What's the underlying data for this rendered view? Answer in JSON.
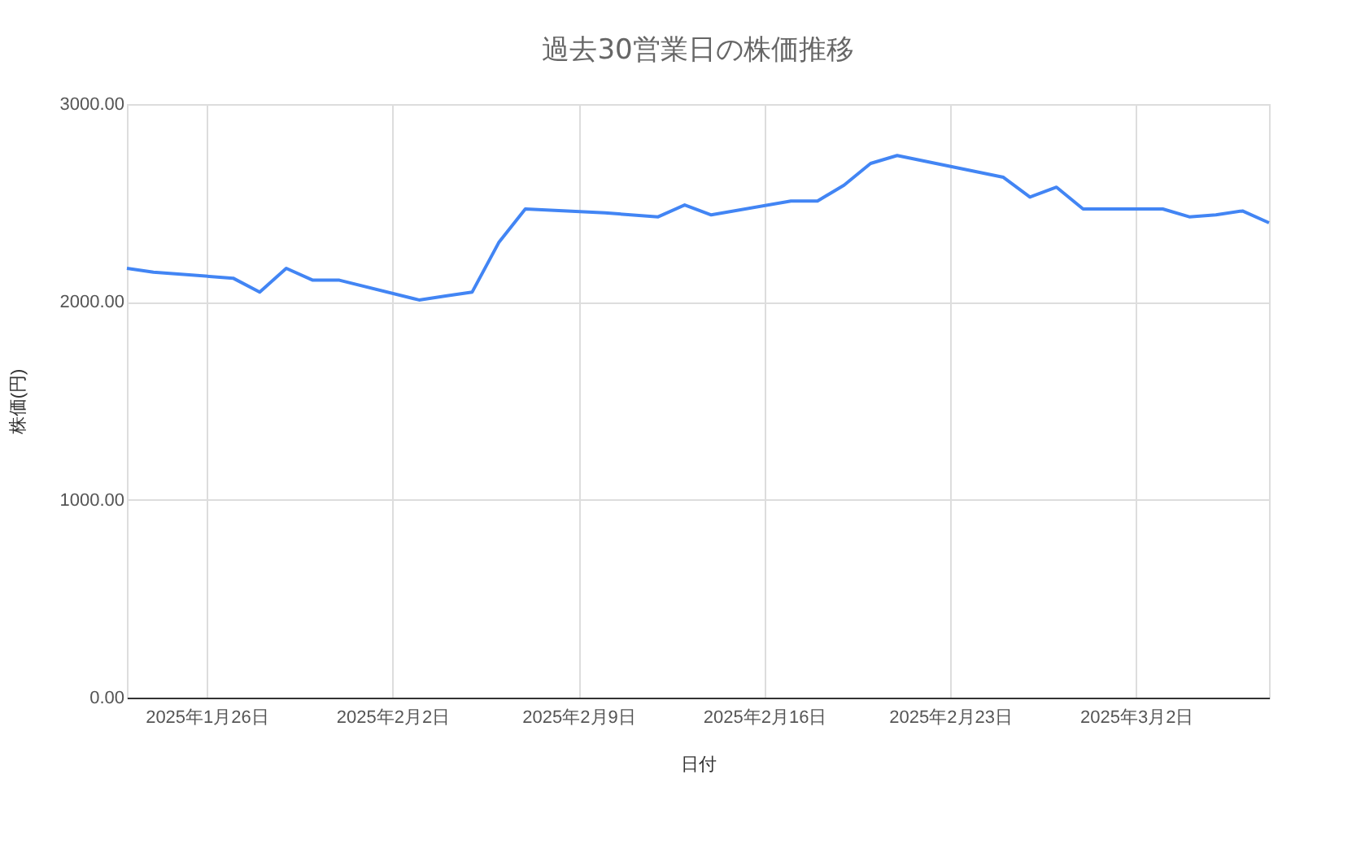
{
  "chart_data": {
    "type": "line",
    "title": "過去30営業日の株価推移",
    "xlabel": "日付",
    "ylabel": "株価(円)",
    "x": [
      "2025-01-23",
      "2025-01-24",
      "2025-01-27",
      "2025-01-28",
      "2025-01-29",
      "2025-01-30",
      "2025-01-31",
      "2025-02-03",
      "2025-02-04",
      "2025-02-05",
      "2025-02-06",
      "2025-02-07",
      "2025-02-10",
      "2025-02-12",
      "2025-02-13",
      "2025-02-14",
      "2025-02-17",
      "2025-02-18",
      "2025-02-19",
      "2025-02-20",
      "2025-02-21",
      "2025-02-25",
      "2025-02-26",
      "2025-02-27",
      "2025-02-28",
      "2025-03-03",
      "2025-03-04",
      "2025-03-05",
      "2025-03-06",
      "2025-03-07"
    ],
    "series": [
      {
        "color": "#4285f4",
        "values": [
          2170,
          2150,
          2120,
          2050,
          2170,
          2110,
          2110,
          2010,
          2030,
          2050,
          2300,
          2470,
          2450,
          2430,
          2490,
          2440,
          2510,
          2510,
          2590,
          2700,
          2740,
          2630,
          2530,
          2580,
          2470,
          2470,
          2430,
          2440,
          2460,
          2400
        ]
      }
    ],
    "xlim": [
      "2025-01-23",
      "2025-03-07"
    ],
    "xticks": [
      {
        "value": "2025-01-26",
        "label": "2025年1月26日"
      },
      {
        "value": "2025-02-02",
        "label": "2025年2月2日"
      },
      {
        "value": "2025-02-09",
        "label": "2025年2月9日"
      },
      {
        "value": "2025-02-16",
        "label": "2025年2月16日"
      },
      {
        "value": "2025-02-23",
        "label": "2025年2月23日"
      },
      {
        "value": "2025-03-02",
        "label": "2025年3月2日"
      }
    ],
    "ylim": [
      0,
      3000
    ],
    "yticks": [
      {
        "value": 0,
        "label": "0.00"
      },
      {
        "value": 1000,
        "label": "1000.00"
      },
      {
        "value": 2000,
        "label": "2000.00"
      },
      {
        "value": 3000,
        "label": "3000.00"
      }
    ],
    "grid": true,
    "legend": false,
    "marker": "none",
    "line_style": "solid"
  }
}
